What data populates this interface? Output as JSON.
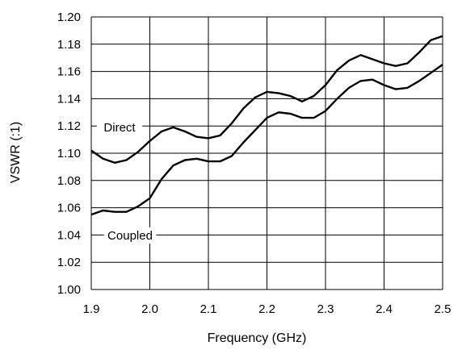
{
  "chart_data": {
    "type": "line",
    "xlabel": "Frequency (GHz)",
    "ylabel": "VSWR (:1)",
    "xlim": [
      1.9,
      2.5
    ],
    "ylim": [
      1.0,
      1.2
    ],
    "x_ticks": [
      "1.9",
      "2.0",
      "2.1",
      "2.2",
      "2.3",
      "2.4",
      "2.5"
    ],
    "y_ticks": [
      "1.00",
      "1.02",
      "1.04",
      "1.06",
      "1.08",
      "1.10",
      "1.12",
      "1.14",
      "1.16",
      "1.18",
      "1.20"
    ],
    "grid": true,
    "legend": "none",
    "series": [
      {
        "name": "Direct",
        "x": [
          1.9,
          1.92,
          1.94,
          1.96,
          1.98,
          2.0,
          2.02,
          2.04,
          2.06,
          2.08,
          2.1,
          2.12,
          2.14,
          2.16,
          2.18,
          2.2,
          2.22,
          2.24,
          2.26,
          2.28,
          2.3,
          2.32,
          2.34,
          2.36,
          2.38,
          2.4,
          2.42,
          2.44,
          2.46,
          2.48,
          2.5
        ],
        "values": [
          1.102,
          1.096,
          1.093,
          1.095,
          1.101,
          1.109,
          1.116,
          1.119,
          1.116,
          1.112,
          1.111,
          1.113,
          1.122,
          1.133,
          1.141,
          1.145,
          1.144,
          1.142,
          1.138,
          1.142,
          1.15,
          1.161,
          1.168,
          1.172,
          1.169,
          1.166,
          1.164,
          1.166,
          1.174,
          1.183,
          1.186
        ]
      },
      {
        "name": "Coupled",
        "x": [
          1.9,
          1.92,
          1.94,
          1.96,
          1.98,
          2.0,
          2.02,
          2.04,
          2.06,
          2.08,
          2.1,
          2.12,
          2.14,
          2.16,
          2.18,
          2.2,
          2.22,
          2.24,
          2.26,
          2.28,
          2.3,
          2.32,
          2.34,
          2.36,
          2.38,
          2.4,
          2.42,
          2.44,
          2.46,
          2.48,
          2.5
        ],
        "values": [
          1.055,
          1.058,
          1.057,
          1.057,
          1.061,
          1.067,
          1.081,
          1.091,
          1.095,
          1.096,
          1.094,
          1.094,
          1.098,
          1.108,
          1.117,
          1.126,
          1.13,
          1.129,
          1.126,
          1.126,
          1.131,
          1.14,
          1.148,
          1.153,
          1.154,
          1.15,
          1.147,
          1.148,
          1.153,
          1.159,
          1.165
        ]
      }
    ]
  }
}
